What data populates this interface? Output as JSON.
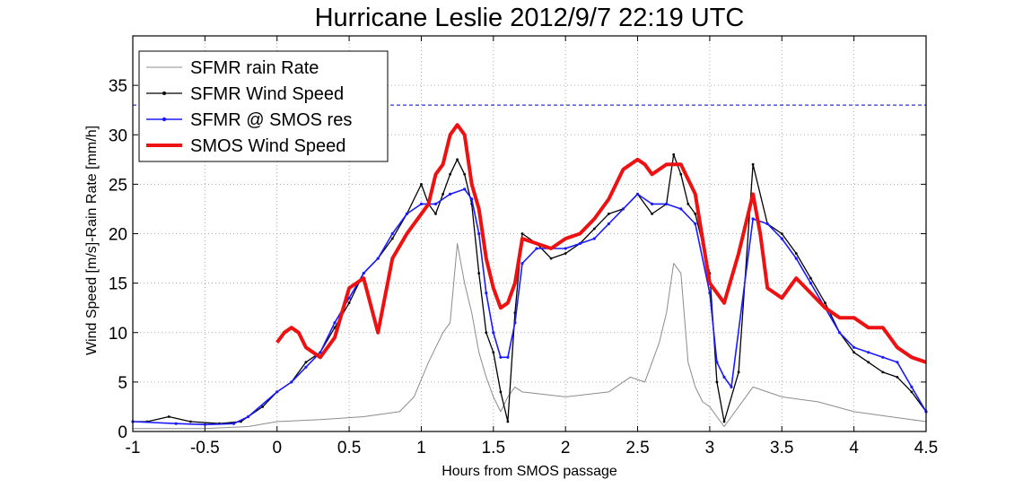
{
  "chart_data": {
    "type": "line",
    "title": "Hurricane Leslie 2012/9/7 22:19 UTC",
    "xlabel": "Hours from SMOS passage",
    "ylabel": "Wind Speed [m/s]-Rain Rate [mm/h]",
    "xlim": [
      -1,
      4.5
    ],
    "ylim": [
      0,
      40
    ],
    "grid": true,
    "legend_position": "top-left",
    "x_ticks": [
      "-1",
      "-0.5",
      "0",
      "0.5",
      "1",
      "1.5",
      "2",
      "2.5",
      "3",
      "3.5",
      "4",
      "4.5"
    ],
    "y_ticks": [
      "0",
      "5",
      "10",
      "15",
      "20",
      "25",
      "30",
      "35"
    ],
    "reference_line": {
      "y": 33,
      "color": "#0000cc",
      "style": "dashed"
    },
    "series": [
      {
        "name": "SFMR rain Rate",
        "color": "#8c8c8c",
        "x": [
          -1,
          -0.5,
          -0.2,
          0.0,
          0.3,
          0.6,
          0.85,
          0.95,
          1.05,
          1.15,
          1.2,
          1.25,
          1.3,
          1.35,
          1.4,
          1.45,
          1.5,
          1.55,
          1.6,
          1.65,
          1.7,
          2.0,
          2.3,
          2.45,
          2.55,
          2.65,
          2.7,
          2.75,
          2.8,
          2.85,
          2.9,
          2.95,
          3.0,
          3.05,
          3.1,
          3.3,
          3.5,
          3.75,
          4.0,
          4.25,
          4.5
        ],
        "y": [
          0.3,
          0.3,
          0.5,
          1.0,
          1.2,
          1.5,
          2.0,
          3.5,
          7.0,
          10.0,
          11.0,
          19.0,
          15.0,
          12.0,
          8.0,
          5.5,
          3.5,
          2.0,
          3.5,
          4.5,
          4.0,
          3.5,
          4.0,
          5.5,
          5.0,
          9.0,
          12.0,
          17.0,
          16.0,
          7.0,
          4.5,
          3.0,
          2.5,
          1.5,
          0.5,
          4.5,
          3.5,
          3.0,
          2.0,
          1.5,
          1.0
        ]
      },
      {
        "name": "SFMR Wind Speed",
        "color": "#000000",
        "x": [
          -1,
          -0.9,
          -0.75,
          -0.6,
          -0.4,
          -0.25,
          -0.1,
          0.0,
          0.1,
          0.2,
          0.3,
          0.4,
          0.5,
          0.6,
          0.7,
          0.8,
          0.9,
          1.0,
          1.05,
          1.1,
          1.15,
          1.2,
          1.25,
          1.3,
          1.35,
          1.4,
          1.45,
          1.5,
          1.55,
          1.6,
          1.65,
          1.7,
          1.8,
          1.9,
          2.0,
          2.1,
          2.2,
          2.3,
          2.4,
          2.5,
          2.6,
          2.7,
          2.75,
          2.8,
          2.85,
          2.9,
          2.95,
          3.0,
          3.05,
          3.1,
          3.2,
          3.3,
          3.4,
          3.5,
          3.6,
          3.7,
          3.8,
          3.9,
          4.0,
          4.1,
          4.2,
          4.3,
          4.4,
          4.5
        ],
        "y": [
          1.0,
          1.0,
          1.5,
          1.0,
          0.8,
          1.0,
          2.5,
          4.0,
          5.0,
          7.0,
          8.0,
          10.5,
          13.0,
          16.0,
          17.5,
          19.5,
          22.0,
          25.0,
          23.0,
          22.0,
          24.0,
          26.0,
          27.5,
          26.0,
          23.0,
          16.0,
          10.0,
          8.0,
          4.0,
          1.0,
          12.0,
          20.0,
          19.0,
          17.5,
          18.0,
          19.0,
          20.5,
          22.0,
          22.5,
          24.0,
          22.0,
          23.0,
          28.0,
          26.0,
          23.0,
          22.0,
          19.0,
          16.0,
          5.0,
          1.0,
          6.0,
          27.0,
          21.0,
          20.0,
          18.0,
          15.5,
          13.0,
          10.0,
          8.0,
          7.0,
          6.0,
          5.5,
          4.0,
          2.0
        ]
      },
      {
        "name": "SFMR @ SMOS res",
        "color": "#1a1aff",
        "x": [
          -1,
          -0.7,
          -0.5,
          -0.3,
          -0.2,
          0.0,
          0.1,
          0.2,
          0.3,
          0.4,
          0.5,
          0.6,
          0.7,
          0.8,
          0.9,
          1.0,
          1.1,
          1.2,
          1.3,
          1.35,
          1.4,
          1.45,
          1.5,
          1.55,
          1.6,
          1.65,
          1.7,
          1.8,
          1.9,
          2.0,
          2.1,
          2.2,
          2.3,
          2.4,
          2.5,
          2.6,
          2.7,
          2.8,
          2.9,
          3.0,
          3.05,
          3.1,
          3.15,
          3.3,
          3.4,
          3.5,
          3.6,
          3.7,
          3.8,
          3.9,
          4.0,
          4.1,
          4.2,
          4.3,
          4.4,
          4.5
        ],
        "y": [
          1.0,
          0.8,
          0.7,
          0.8,
          1.5,
          4.0,
          5.0,
          6.5,
          8.0,
          11.0,
          13.5,
          16.0,
          17.5,
          20.0,
          22.0,
          23.0,
          23.0,
          24.0,
          24.5,
          23.5,
          20.0,
          14.0,
          10.0,
          7.5,
          7.5,
          11.0,
          17.0,
          18.5,
          18.5,
          18.5,
          19.0,
          19.5,
          21.0,
          22.5,
          24.0,
          23.0,
          23.0,
          22.5,
          21.0,
          14.0,
          7.0,
          5.5,
          4.5,
          21.5,
          21.0,
          19.5,
          17.5,
          15.0,
          12.5,
          10.0,
          8.5,
          8.0,
          7.5,
          7.0,
          4.5,
          2.0
        ]
      },
      {
        "name": "SMOS Wind Speed",
        "color": "#ee1111",
        "x": [
          0.0,
          0.05,
          0.1,
          0.15,
          0.2,
          0.3,
          0.4,
          0.5,
          0.6,
          0.7,
          0.8,
          0.9,
          1.0,
          1.05,
          1.1,
          1.15,
          1.2,
          1.25,
          1.3,
          1.35,
          1.4,
          1.45,
          1.5,
          1.55,
          1.6,
          1.65,
          1.7,
          1.8,
          1.9,
          2.0,
          2.1,
          2.2,
          2.3,
          2.4,
          2.5,
          2.55,
          2.6,
          2.7,
          2.8,
          2.9,
          3.0,
          3.1,
          3.2,
          3.3,
          3.35,
          3.4,
          3.5,
          3.6,
          3.7,
          3.8,
          3.9,
          4.0,
          4.1,
          4.2,
          4.3,
          4.4,
          4.5
        ],
        "y": [
          9.0,
          10.0,
          10.5,
          10.0,
          8.5,
          7.5,
          9.5,
          14.5,
          15.5,
          10.0,
          17.5,
          20.0,
          22.0,
          23.0,
          26.0,
          27.0,
          30.0,
          31.0,
          30.0,
          25.0,
          22.5,
          17.5,
          14.5,
          12.5,
          13.0,
          15.0,
          19.5,
          19.0,
          18.5,
          19.5,
          20.0,
          21.5,
          23.5,
          26.5,
          27.5,
          27.0,
          26.0,
          27.0,
          27.0,
          24.0,
          15.0,
          13.0,
          18.0,
          24.0,
          20.0,
          14.5,
          13.5,
          15.5,
          14.0,
          12.5,
          11.5,
          11.5,
          10.5,
          10.5,
          8.5,
          7.5,
          7.0
        ]
      }
    ]
  }
}
